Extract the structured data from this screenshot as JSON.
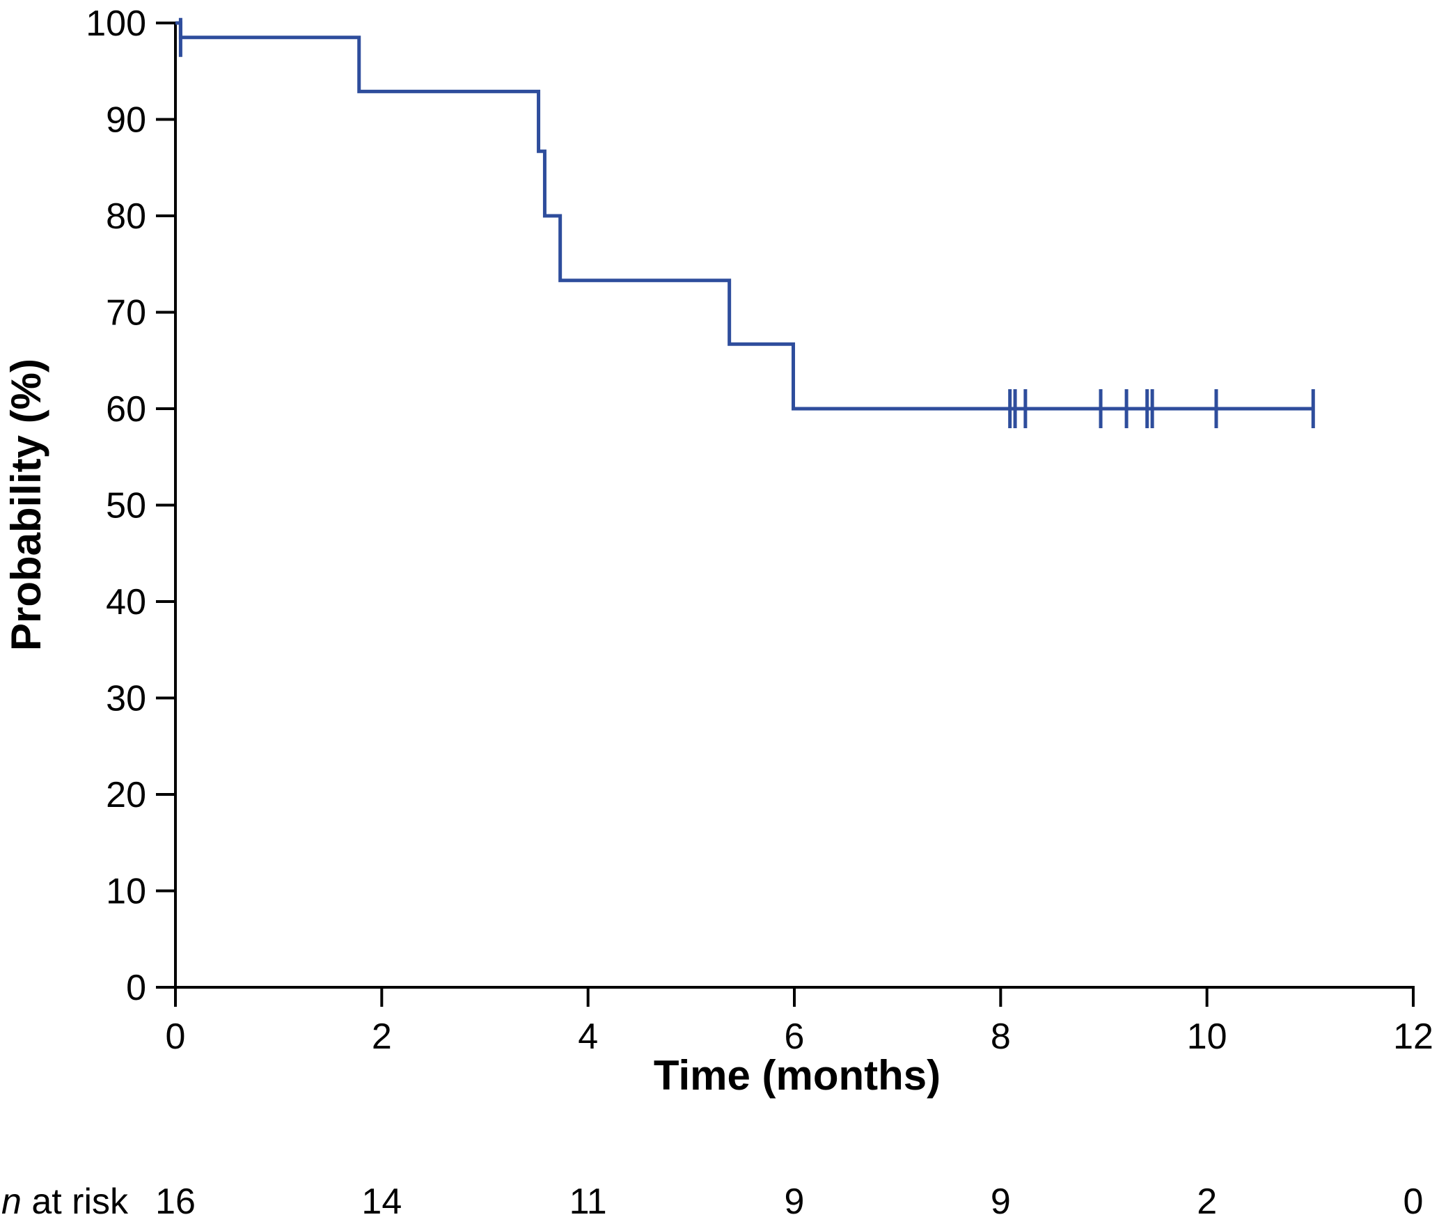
{
  "chart_data": {
    "type": "line",
    "subtype": "kaplan-meier-step",
    "title": "",
    "xlabel": "Time (months)",
    "ylabel": "Probability (%)",
    "xlim": [
      0,
      12
    ],
    "ylim": [
      0,
      100
    ],
    "x_ticks": [
      0,
      2,
      4,
      6,
      8,
      10,
      12
    ],
    "y_ticks": [
      0,
      10,
      20,
      30,
      40,
      50,
      60,
      70,
      80,
      90,
      100
    ],
    "grid": false,
    "line_color": "#2e4d9c",
    "steps": [
      {
        "x": 0.0,
        "y": 100.0
      },
      {
        "x": 0.05,
        "y": 98.5
      },
      {
        "x": 1.78,
        "y": 92.9
      },
      {
        "x": 3.52,
        "y": 86.7
      },
      {
        "x": 3.58,
        "y": 80.0
      },
      {
        "x": 3.73,
        "y": 73.3
      },
      {
        "x": 5.37,
        "y": 66.7
      },
      {
        "x": 5.99,
        "y": 60.0
      }
    ],
    "end_x": 11.03,
    "censored": [
      {
        "x": 0.05,
        "y": 98.5
      },
      {
        "x": 8.09,
        "y": 60.0
      },
      {
        "x": 8.14,
        "y": 60.0
      },
      {
        "x": 8.24,
        "y": 60.0
      },
      {
        "x": 8.97,
        "y": 60.0
      },
      {
        "x": 9.22,
        "y": 60.0
      },
      {
        "x": 9.42,
        "y": 60.0
      },
      {
        "x": 9.47,
        "y": 60.0
      },
      {
        "x": 10.09,
        "y": 60.0
      },
      {
        "x": 11.03,
        "y": 60.0
      }
    ],
    "at_risk": {
      "label_italic": "n",
      "label_rest": " at risk",
      "times": [
        0,
        2,
        4,
        6,
        8,
        10,
        12
      ],
      "counts": [
        "16",
        "14",
        "11",
        "9",
        "9",
        "2",
        "0"
      ]
    }
  }
}
